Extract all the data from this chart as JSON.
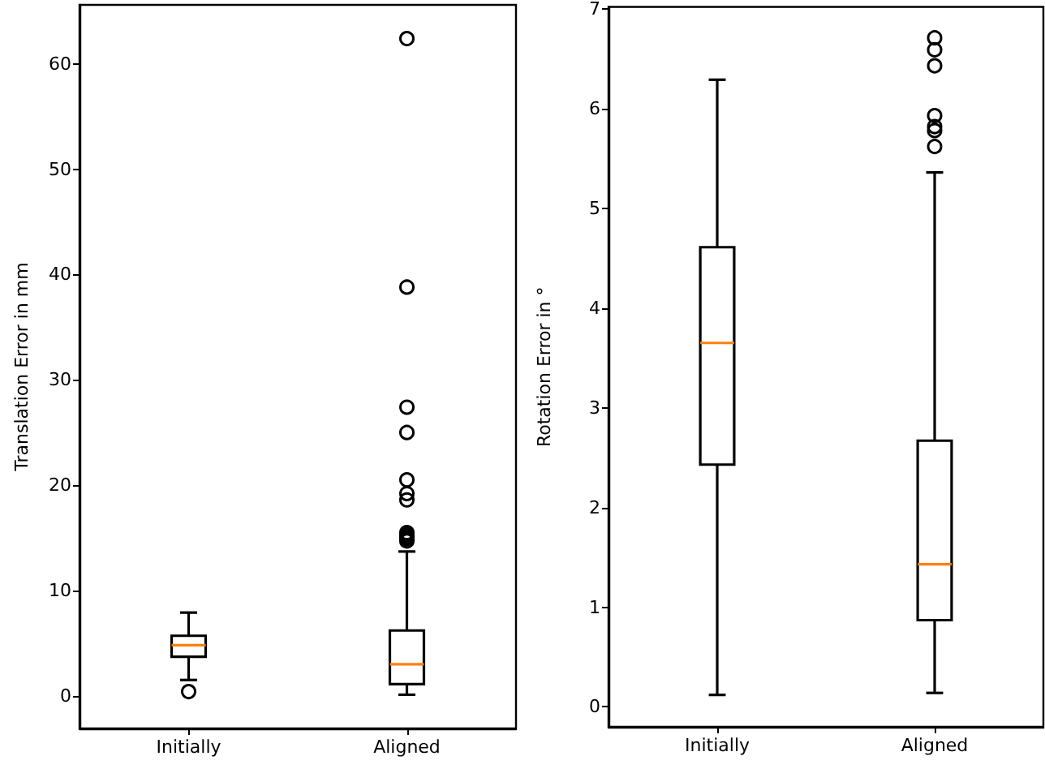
{
  "chart_data": [
    {
      "type": "box",
      "categories": [
        "Initially",
        "Aligned"
      ],
      "ylabel": "Translation Error in mm",
      "ylim": [
        -3.1,
        65.6
      ],
      "yticks": [
        0,
        10,
        20,
        30,
        40,
        50,
        60
      ],
      "grid": false,
      "series": [
        {
          "color": "#000000",
          "boxes": [
            {
              "low": 1.5,
              "q1": 3.7,
              "median": 4.8,
              "q3": 5.7,
              "high": 7.9,
              "outliers": [
                0.4
              ]
            },
            {
              "low": 0.1,
              "q1": 1.1,
              "median": 3.0,
              "q3": 6.2,
              "high": 13.7,
              "outliers": [
                62.4,
                38.8,
                27.4,
                25.0,
                20.5,
                19.2,
                18.6,
                15.5,
                15.3,
                15.1,
                14.9,
                14.7
              ]
            }
          ]
        }
      ]
    },
    {
      "type": "box",
      "categories": [
        "Initially",
        "Aligned"
      ],
      "ylabel": "Rotation Error in °",
      "ylim": [
        -0.2,
        7.02
      ],
      "yticks": [
        0,
        1,
        2,
        3,
        4,
        5,
        6,
        7
      ],
      "grid": false,
      "series": [
        {
          "color": "#000000",
          "boxes": [
            {
              "low": 0.12,
              "q1": 2.43,
              "median": 3.65,
              "q3": 4.61,
              "high": 6.29
            },
            {
              "low": 0.14,
              "q1": 0.87,
              "median": 1.43,
              "q3": 2.67,
              "high": 5.36,
              "outliers": [
                6.71,
                6.59,
                6.43,
                5.93,
                5.82,
                5.78,
                5.62
              ]
            }
          ]
        }
      ]
    }
  ]
}
